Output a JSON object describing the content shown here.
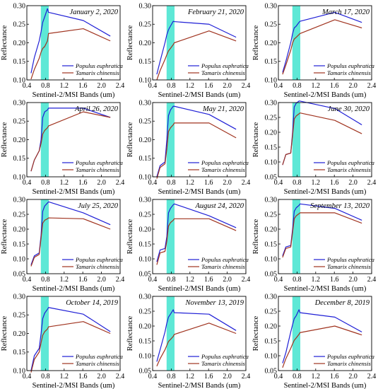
{
  "figure": {
    "xlabel": "Sentinel-2/MSI Bands (um)",
    "ylabel": "Reflectance",
    "legend": [
      "Populus euphratica",
      "Tamarix chinensis"
    ],
    "colors": {
      "Populus euphratica": "#1f1fd6",
      "Tamarix chinensis": "#a0331f",
      "band_highlight": "#5ee8d6"
    }
  },
  "chart_data": [
    {
      "type": "line",
      "title": "January 2, 2020",
      "xlim": [
        0.4,
        2.4
      ],
      "ylim": [
        0.1,
        0.3
      ],
      "yticks": [
        0.1,
        0.15,
        0.2,
        0.25,
        0.3
      ],
      "xticks": [
        0.4,
        0.8,
        1.2,
        1.6,
        2.0,
        2.4
      ],
      "highlight": [
        0.7,
        0.87
      ],
      "series": [
        {
          "name": "Populus euphratica",
          "x": [
            0.49,
            0.56,
            0.665,
            0.705,
            0.74,
            0.783,
            0.842,
            0.865,
            1.61,
            2.19
          ],
          "y": [
            0.118,
            0.16,
            0.205,
            0.23,
            0.255,
            0.27,
            0.292,
            0.282,
            0.26,
            0.218
          ]
        },
        {
          "name": "Tamarix chinensis",
          "x": [
            0.49,
            0.56,
            0.665,
            0.705,
            0.74,
            0.783,
            0.842,
            0.865,
            1.61,
            2.19
          ],
          "y": [
            0.102,
            0.128,
            0.158,
            0.175,
            0.185,
            0.19,
            0.205,
            0.225,
            0.238,
            0.205
          ]
        }
      ]
    },
    {
      "type": "line",
      "title": "February 21, 2020",
      "xlim": [
        0.4,
        2.4
      ],
      "ylim": [
        0.1,
        0.3
      ],
      "yticks": [
        0.1,
        0.15,
        0.2,
        0.25,
        0.3
      ],
      "xticks": [
        0.4,
        0.8,
        1.2,
        1.6,
        2.0,
        2.4
      ],
      "highlight": [
        0.7,
        0.87
      ],
      "series": [
        {
          "name": "Populus euphratica",
          "x": [
            0.49,
            0.56,
            0.665,
            0.705,
            0.74,
            0.783,
            0.842,
            0.865,
            1.61,
            2.19
          ],
          "y": [
            0.115,
            0.15,
            0.2,
            0.222,
            0.235,
            0.245,
            0.258,
            0.257,
            0.25,
            0.215
          ]
        },
        {
          "name": "Tamarix chinensis",
          "x": [
            0.49,
            0.56,
            0.665,
            0.705,
            0.74,
            0.783,
            0.842,
            0.865,
            1.61,
            2.19
          ],
          "y": [
            0.1,
            0.125,
            0.155,
            0.168,
            0.178,
            0.185,
            0.195,
            0.2,
            0.232,
            0.205
          ]
        }
      ]
    },
    {
      "type": "line",
      "title": "March 17, 2020",
      "xlim": [
        0.4,
        2.4
      ],
      "ylim": [
        0.1,
        0.3
      ],
      "yticks": [
        0.1,
        0.15,
        0.2,
        0.25,
        0.3
      ],
      "xticks": [
        0.4,
        0.8,
        1.2,
        1.6,
        2.0,
        2.4
      ],
      "highlight": [
        0.7,
        0.87
      ],
      "series": [
        {
          "name": "Populus euphratica",
          "x": [
            0.49,
            0.56,
            0.665,
            0.705,
            0.74,
            0.783,
            0.842,
            0.865,
            1.61,
            2.19
          ],
          "y": [
            0.12,
            0.15,
            0.2,
            0.225,
            0.24,
            0.245,
            0.255,
            0.258,
            0.282,
            0.255
          ]
        },
        {
          "name": "Tamarix chinensis",
          "x": [
            0.49,
            0.56,
            0.665,
            0.705,
            0.74,
            0.783,
            0.842,
            0.865,
            1.61,
            2.19
          ],
          "y": [
            0.115,
            0.14,
            0.18,
            0.2,
            0.21,
            0.215,
            0.222,
            0.225,
            0.262,
            0.24
          ]
        }
      ]
    },
    {
      "type": "line",
      "title": "April 26, 2020",
      "xlim": [
        0.4,
        2.4
      ],
      "ylim": [
        0.1,
        0.3
      ],
      "yticks": [
        0.1,
        0.15,
        0.2,
        0.25,
        0.3
      ],
      "xticks": [
        0.4,
        0.8,
        1.2,
        1.6,
        2.0,
        2.4
      ],
      "highlight": [
        0.7,
        0.87
      ],
      "series": [
        {
          "name": "Populus euphratica",
          "x": [
            0.49,
            0.56,
            0.665,
            0.705,
            0.74,
            0.783,
            0.842,
            0.865,
            1.61,
            2.19
          ],
          "y": [
            0.115,
            0.145,
            0.17,
            0.2,
            0.26,
            0.275,
            0.28,
            0.285,
            0.285,
            0.26
          ]
        },
        {
          "name": "Tamarix chinensis",
          "x": [
            0.49,
            0.56,
            0.665,
            0.705,
            0.74,
            0.783,
            0.842,
            0.865,
            1.61,
            2.19
          ],
          "y": [
            0.115,
            0.145,
            0.17,
            0.19,
            0.215,
            0.225,
            0.232,
            0.237,
            0.275,
            0.26
          ]
        }
      ]
    },
    {
      "type": "line",
      "title": "May 21, 2020",
      "xlim": [
        0.4,
        2.4
      ],
      "ylim": [
        0.1,
        0.3
      ],
      "yticks": [
        0.1,
        0.15,
        0.2,
        0.25,
        0.3
      ],
      "xticks": [
        0.4,
        0.8,
        1.2,
        1.6,
        2.0,
        2.4
      ],
      "highlight": [
        0.7,
        0.87
      ],
      "series": [
        {
          "name": "Populus euphratica",
          "x": [
            0.49,
            0.56,
            0.665,
            0.705,
            0.74,
            0.783,
            0.842,
            0.865,
            1.61,
            2.19
          ],
          "y": [
            0.1,
            0.13,
            0.14,
            0.2,
            0.265,
            0.28,
            0.29,
            0.29,
            0.268,
            0.228
          ]
        },
        {
          "name": "Tamarix chinensis",
          "x": [
            0.49,
            0.56,
            0.665,
            0.705,
            0.74,
            0.783,
            0.842,
            0.865,
            1.61,
            2.19
          ],
          "y": [
            0.095,
            0.125,
            0.135,
            0.175,
            0.222,
            0.232,
            0.24,
            0.245,
            0.245,
            0.205
          ]
        }
      ]
    },
    {
      "type": "line",
      "title": "June 30, 2020",
      "xlim": [
        0.4,
        2.4
      ],
      "ylim": [
        0.05,
        0.3
      ],
      "yticks": [
        0.05,
        0.1,
        0.15,
        0.2,
        0.25,
        0.3
      ],
      "xticks": [
        0.4,
        0.8,
        1.2,
        1.6,
        2.0,
        2.4
      ],
      "highlight": [
        0.7,
        0.87
      ],
      "series": [
        {
          "name": "Populus euphratica",
          "x": [
            0.49,
            0.56,
            0.665,
            0.705,
            0.74,
            0.783,
            0.842,
            0.865,
            1.61,
            2.19
          ],
          "y": [
            0.09,
            0.125,
            0.13,
            0.2,
            0.285,
            0.298,
            0.305,
            0.305,
            0.28,
            0.225
          ]
        },
        {
          "name": "Tamarix chinensis",
          "x": [
            0.49,
            0.56,
            0.665,
            0.705,
            0.74,
            0.783,
            0.842,
            0.865,
            1.61,
            2.19
          ],
          "y": [
            0.09,
            0.125,
            0.13,
            0.19,
            0.245,
            0.255,
            0.262,
            0.265,
            0.24,
            0.195
          ]
        }
      ]
    },
    {
      "type": "line",
      "title": "July 25, 2020",
      "xlim": [
        0.4,
        2.4
      ],
      "ylim": [
        0.05,
        0.3
      ],
      "yticks": [
        0.05,
        0.1,
        0.15,
        0.2,
        0.25,
        0.3
      ],
      "xticks": [
        0.4,
        0.8,
        1.2,
        1.6,
        2.0,
        2.4
      ],
      "highlight": [
        0.7,
        0.87
      ],
      "series": [
        {
          "name": "Populus euphratica",
          "x": [
            0.49,
            0.56,
            0.665,
            0.705,
            0.74,
            0.783,
            0.842,
            0.865,
            1.61,
            2.19
          ],
          "y": [
            0.08,
            0.11,
            0.12,
            0.18,
            0.26,
            0.278,
            0.288,
            0.292,
            0.255,
            0.215
          ]
        },
        {
          "name": "Tamarix chinensis",
          "x": [
            0.49,
            0.56,
            0.665,
            0.705,
            0.74,
            0.783,
            0.842,
            0.865,
            1.61,
            2.19
          ],
          "y": [
            0.075,
            0.105,
            0.115,
            0.17,
            0.22,
            0.23,
            0.235,
            0.238,
            0.235,
            0.2
          ]
        }
      ]
    },
    {
      "type": "line",
      "title": "August 24, 2020",
      "xlim": [
        0.4,
        2.4
      ],
      "ylim": [
        0.05,
        0.3
      ],
      "yticks": [
        0.05,
        0.1,
        0.15,
        0.2,
        0.25,
        0.3
      ],
      "xticks": [
        0.4,
        0.8,
        1.2,
        1.6,
        2.0,
        2.4
      ],
      "highlight": [
        0.7,
        0.87
      ],
      "series": [
        {
          "name": "Populus euphratica",
          "x": [
            0.49,
            0.56,
            0.665,
            0.705,
            0.74,
            0.783,
            0.842,
            0.865,
            1.61,
            2.19
          ],
          "y": [
            0.09,
            0.13,
            0.135,
            0.175,
            0.255,
            0.27,
            0.282,
            0.285,
            0.245,
            0.205
          ]
        },
        {
          "name": "Tamarix chinensis",
          "x": [
            0.49,
            0.56,
            0.665,
            0.705,
            0.74,
            0.783,
            0.842,
            0.865,
            1.61,
            2.19
          ],
          "y": [
            0.08,
            0.12,
            0.125,
            0.16,
            0.21,
            0.222,
            0.23,
            0.235,
            0.235,
            0.195
          ]
        }
      ]
    },
    {
      "type": "line",
      "title": "September 13, 2020",
      "xlim": [
        0.4,
        2.4
      ],
      "ylim": [
        0.05,
        0.3
      ],
      "yticks": [
        0.05,
        0.1,
        0.15,
        0.2,
        0.25,
        0.3
      ],
      "xticks": [
        0.4,
        0.8,
        1.2,
        1.6,
        2.0,
        2.4
      ],
      "highlight": [
        0.7,
        0.87
      ],
      "series": [
        {
          "name": "Populus euphratica",
          "x": [
            0.49,
            0.56,
            0.665,
            0.705,
            0.74,
            0.783,
            0.842,
            0.865,
            1.61,
            2.19
          ],
          "y": [
            0.11,
            0.14,
            0.145,
            0.2,
            0.26,
            0.272,
            0.28,
            0.285,
            0.27,
            0.23
          ]
        },
        {
          "name": "Tamarix chinensis",
          "x": [
            0.49,
            0.56,
            0.665,
            0.705,
            0.74,
            0.783,
            0.842,
            0.865,
            1.61,
            2.19
          ],
          "y": [
            0.105,
            0.135,
            0.14,
            0.19,
            0.235,
            0.245,
            0.252,
            0.255,
            0.255,
            0.22
          ]
        }
      ]
    },
    {
      "type": "line",
      "title": "October 14, 2019",
      "xlim": [
        0.4,
        2.4
      ],
      "ylim": [
        0.1,
        0.3
      ],
      "yticks": [
        0.1,
        0.15,
        0.2,
        0.25,
        0.3
      ],
      "xticks": [
        0.4,
        0.8,
        1.2,
        1.6,
        2.0,
        2.4
      ],
      "highlight": [
        0.7,
        0.87
      ],
      "series": [
        {
          "name": "Populus euphratica",
          "x": [
            0.49,
            0.56,
            0.665,
            0.705,
            0.74,
            0.783,
            0.842,
            0.865,
            1.61,
            2.19
          ],
          "y": [
            0.1,
            0.14,
            0.16,
            0.2,
            0.24,
            0.255,
            0.265,
            0.27,
            0.252,
            0.205
          ]
        },
        {
          "name": "Tamarix chinensis",
          "x": [
            0.49,
            0.56,
            0.665,
            0.705,
            0.74,
            0.783,
            0.842,
            0.865,
            1.61,
            2.19
          ],
          "y": [
            0.095,
            0.13,
            0.15,
            0.175,
            0.195,
            0.205,
            0.212,
            0.218,
            0.232,
            0.2
          ]
        }
      ]
    },
    {
      "type": "line",
      "title": "November 13, 2019",
      "xlim": [
        0.4,
        2.4
      ],
      "ylim": [
        0.05,
        0.3
      ],
      "yticks": [
        0.05,
        0.1,
        0.15,
        0.2,
        0.25,
        0.3
      ],
      "xticks": [
        0.4,
        0.8,
        1.2,
        1.6,
        2.0,
        2.4
      ],
      "highlight": [
        0.7,
        0.87
      ],
      "series": [
        {
          "name": "Populus euphratica",
          "x": [
            0.49,
            0.56,
            0.665,
            0.705,
            0.74,
            0.783,
            0.842,
            0.865,
            1.61,
            2.19
          ],
          "y": [
            0.08,
            0.12,
            0.18,
            0.21,
            0.23,
            0.24,
            0.255,
            0.245,
            0.24,
            0.185
          ]
        },
        {
          "name": "Tamarix chinensis",
          "x": [
            0.49,
            0.56,
            0.665,
            0.705,
            0.74,
            0.783,
            0.842,
            0.865,
            1.61,
            2.19
          ],
          "y": [
            0.065,
            0.09,
            0.12,
            0.135,
            0.148,
            0.155,
            0.165,
            0.172,
            0.21,
            0.175
          ]
        }
      ]
    },
    {
      "type": "line",
      "title": "December 8, 2019",
      "xlim": [
        0.4,
        2.4
      ],
      "ylim": [
        0.05,
        0.3
      ],
      "yticks": [
        0.05,
        0.1,
        0.15,
        0.2,
        0.25,
        0.3
      ],
      "xticks": [
        0.4,
        0.8,
        1.2,
        1.6,
        2.0,
        2.4
      ],
      "highlight": [
        0.7,
        0.87
      ],
      "series": [
        {
          "name": "Populus euphratica",
          "x": [
            0.49,
            0.56,
            0.665,
            0.705,
            0.74,
            0.783,
            0.842,
            0.865,
            1.61,
            2.19
          ],
          "y": [
            0.075,
            0.11,
            0.18,
            0.205,
            0.225,
            0.235,
            0.255,
            0.245,
            0.23,
            0.18
          ]
        },
        {
          "name": "Tamarix chinensis",
          "x": [
            0.49,
            0.56,
            0.665,
            0.705,
            0.74,
            0.783,
            0.842,
            0.865,
            1.61,
            2.19
          ],
          "y": [
            0.06,
            0.09,
            0.125,
            0.14,
            0.152,
            0.16,
            0.172,
            0.178,
            0.2,
            0.17
          ]
        }
      ]
    }
  ]
}
